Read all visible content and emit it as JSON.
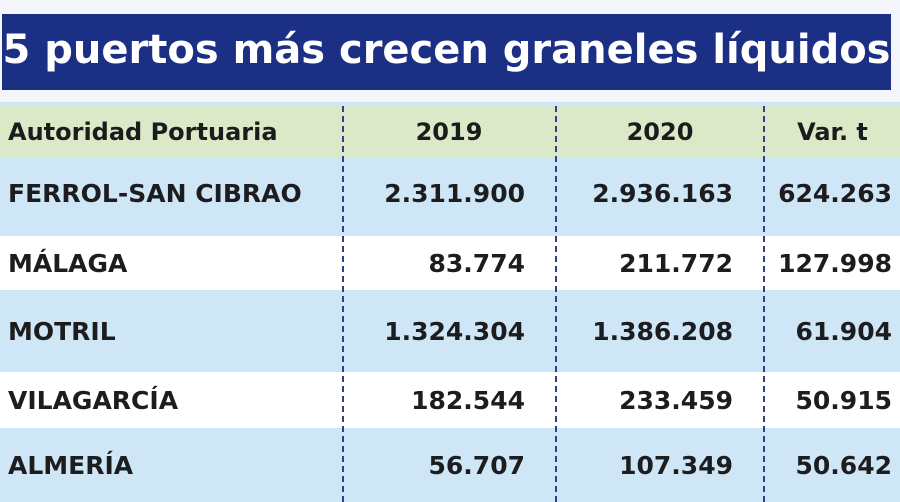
{
  "title": "5 puertos más crecen graneles líquidos",
  "chart_data": {
    "type": "table",
    "title": "5 puertos más crecen graneles líquidos",
    "columns": [
      "Autoridad Portuaria",
      "2019",
      "2020",
      "Var. t"
    ],
    "rows": [
      [
        "FERROL-SAN CIBRAO",
        "2.311.900",
        "2.936.163",
        "624.263"
      ],
      [
        "MÁLAGA",
        "83.774",
        "211.772",
        "127.998"
      ],
      [
        "MOTRIL",
        "1.324.304",
        "1.386.208",
        "61.904"
      ],
      [
        "VILAGARCÍA",
        "182.544",
        "233.459",
        "50.915"
      ],
      [
        "ALMERÍA",
        "56.707",
        "107.349",
        "50.642"
      ]
    ]
  },
  "colors": {
    "title_bg": "#1b2f85",
    "header_bg": "#dbe9c9",
    "row_light": "#cfe6f6",
    "row_white": "#ffffff",
    "divider": "#2f3f88"
  }
}
